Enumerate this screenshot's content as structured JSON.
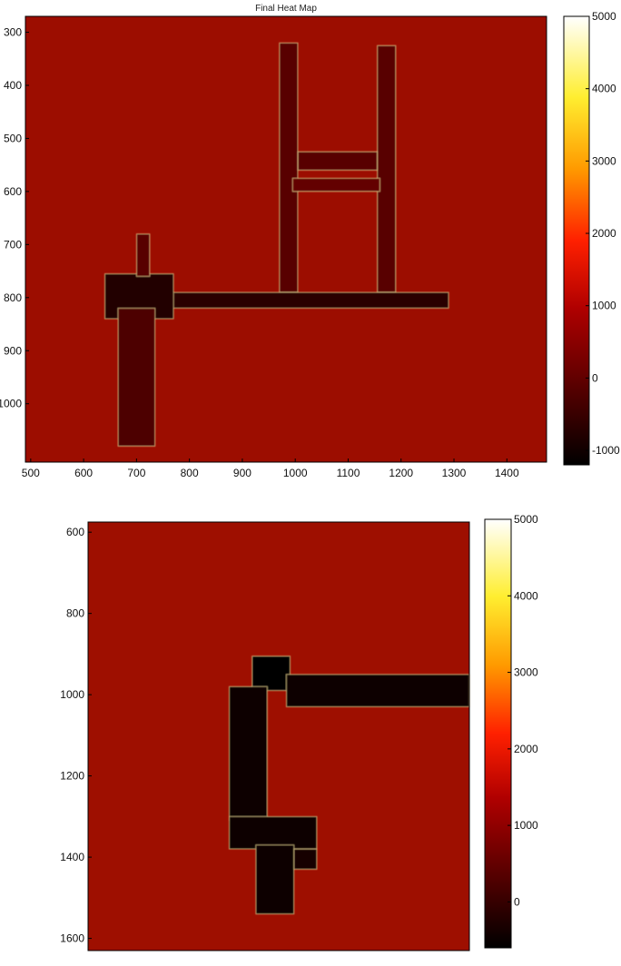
{
  "chart_data": [
    {
      "type": "heatmap",
      "title": "Final Heat Map",
      "xlabel": "",
      "ylabel": "",
      "xlim": [
        490,
        1475
      ],
      "ylim": [
        1110,
        270
      ],
      "xticks": [
        500,
        600,
        700,
        800,
        900,
        1000,
        1100,
        1200,
        1300,
        1400
      ],
      "yticks": [
        300,
        400,
        500,
        600,
        700,
        800,
        900,
        1000
      ],
      "background_value": 0,
      "colormap": "hot",
      "colorbar": {
        "min": -1200,
        "max": 5000,
        "ticks": [
          -1000,
          0,
          1000,
          2000,
          3000,
          4000,
          5000
        ]
      },
      "regions": [
        {
          "name": "left-column",
          "x": [
            970,
            1005
          ],
          "y": [
            320,
            790
          ],
          "value": -400
        },
        {
          "name": "right-column",
          "x": [
            1155,
            1190
          ],
          "y": [
            325,
            790
          ],
          "value": -400
        },
        {
          "name": "upper-crossbar",
          "x": [
            1005,
            1155
          ],
          "y": [
            525,
            560
          ],
          "value": -400
        },
        {
          "name": "lower-crossbar",
          "x": [
            995,
            1160
          ],
          "y": [
            575,
            600
          ],
          "value": -300
        },
        {
          "name": "main-corridor",
          "x": [
            660,
            1290
          ],
          "y": [
            790,
            820
          ],
          "value": -800
        },
        {
          "name": "left-block",
          "x": [
            640,
            770
          ],
          "y": [
            755,
            840
          ],
          "value": -900
        },
        {
          "name": "left-stem",
          "x": [
            665,
            735
          ],
          "y": [
            820,
            1080
          ],
          "value": -500
        },
        {
          "name": "left-top-stub",
          "x": [
            700,
            725
          ],
          "y": [
            680,
            760
          ],
          "value": -400
        }
      ]
    },
    {
      "type": "heatmap",
      "title": "",
      "xlabel": "",
      "ylabel": "",
      "xticks": [],
      "yticks": [
        600,
        800,
        1000,
        1200,
        1400,
        1600
      ],
      "ylim": [
        575,
        1630
      ],
      "xlim": [
        0,
        1000
      ],
      "background_value": 0,
      "colormap": "hot",
      "colorbar": {
        "min": -600,
        "max": 5000,
        "ticks": [
          0,
          1000,
          2000,
          3000,
          4000,
          5000
        ]
      },
      "regions": [
        {
          "name": "top-hub",
          "x": [
            430,
            530
          ],
          "y": [
            905,
            990
          ],
          "value": -900
        },
        {
          "name": "right-arm",
          "x": [
            520,
            1000
          ],
          "y": [
            950,
            1030
          ],
          "value": -500
        },
        {
          "name": "down-corridor",
          "x": [
            370,
            470
          ],
          "y": [
            980,
            1310
          ],
          "value": -500
        },
        {
          "name": "lower-block",
          "x": [
            370,
            600
          ],
          "y": [
            1300,
            1380
          ],
          "value": -500
        },
        {
          "name": "bottom-stem",
          "x": [
            440,
            540
          ],
          "y": [
            1370,
            1540
          ],
          "value": -500
        },
        {
          "name": "bottom-right-nub",
          "x": [
            540,
            600
          ],
          "y": [
            1380,
            1430
          ],
          "value": -400
        }
      ]
    }
  ]
}
